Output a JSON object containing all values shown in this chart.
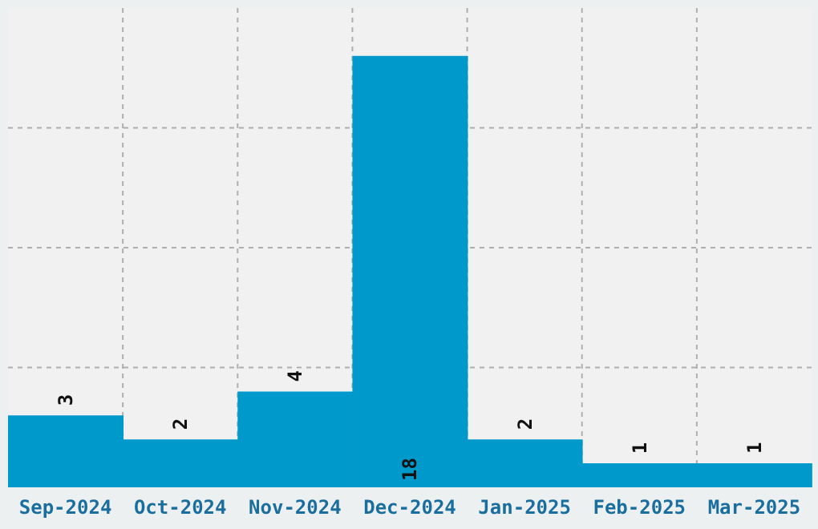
{
  "chart_data": {
    "type": "bar",
    "categories": [
      "Sep-2024",
      "Oct-2024",
      "Nov-2024",
      "Dec-2024",
      "Jan-2025",
      "Feb-2025",
      "Mar-2025"
    ],
    "values": [
      3,
      2,
      4,
      18,
      2,
      1,
      1
    ],
    "color": "#0099cc",
    "ylim": [
      0,
      20
    ],
    "yticks": [
      {
        "value": 5,
        "label": null
      },
      {
        "value": 10,
        "label": null
      },
      {
        "value": 15,
        "label": null
      }
    ],
    "tick_labels": "x",
    "grid": true,
    "data_labels": true
  }
}
